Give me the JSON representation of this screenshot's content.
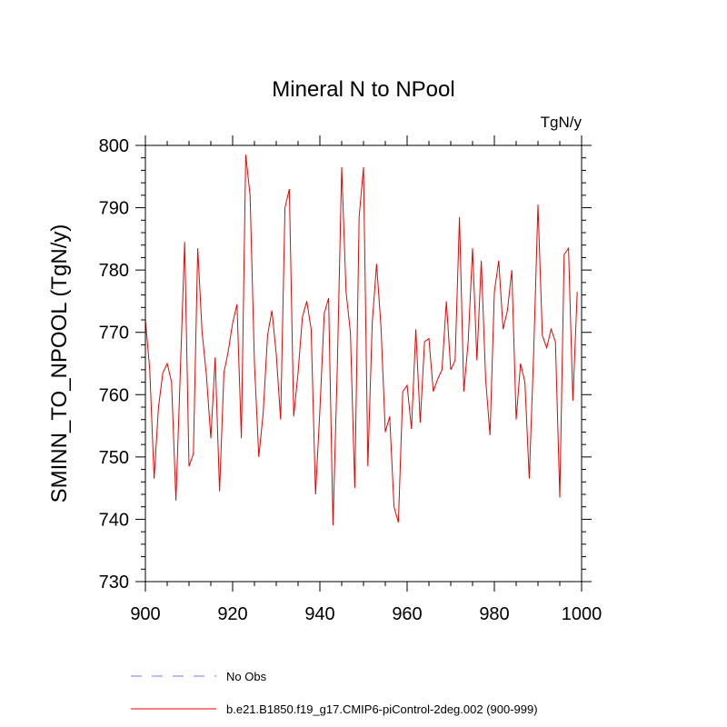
{
  "chart_data": {
    "type": "line",
    "title": "Mineral N to NPool",
    "units_label": "TgN/y",
    "xlabel": "",
    "ylabel": "SMINN_TO_NPOOL  (TgN/y)",
    "xlim": [
      900,
      1000
    ],
    "ylim": [
      730,
      800
    ],
    "x_ticks": [
      900,
      920,
      940,
      960,
      980,
      1000
    ],
    "x_tick_labels": [
      "900",
      "920",
      "940",
      "960",
      "980",
      "1000"
    ],
    "y_ticks": [
      730,
      740,
      750,
      760,
      770,
      780,
      790,
      800
    ],
    "y_tick_labels": [
      "730",
      "740",
      "750",
      "760",
      "770",
      "780",
      "790",
      "800"
    ],
    "grid": false,
    "legend": [
      {
        "label": "No Obs",
        "color": "#7070ff",
        "style": "dashed"
      },
      {
        "label": "b.e21.B1850.f19_g17.CMIP6-piControl-2deg.002 (900-999)",
        "color": "#ee0000",
        "style": "solid"
      }
    ],
    "series": [
      {
        "name": "b.e21.B1850.f19_g17.CMIP6-piControl-2deg.002 (900-999)",
        "color": "#ee0000",
        "x_start": 900,
        "x_step": 1,
        "values": [
          772.0,
          764.0,
          746.5,
          758.0,
          763.5,
          765.0,
          762.0,
          743.0,
          763.5,
          784.5,
          748.5,
          750.5,
          783.5,
          770.0,
          763.0,
          753.0,
          766.0,
          744.5,
          763.5,
          767.0,
          771.5,
          774.5,
          753.0,
          798.5,
          792.0,
          765.0,
          750.0,
          757.0,
          769.5,
          773.5,
          766.5,
          756.0,
          790.0,
          793.0,
          756.5,
          763.5,
          772.5,
          775.0,
          770.5,
          744.0,
          757.5,
          773.0,
          775.5,
          739.0,
          764.5,
          796.5,
          776.5,
          770.0,
          745.0,
          788.5,
          796.5,
          748.5,
          771.5,
          781.0,
          771.0,
          754.0,
          756.5,
          742.0,
          739.5,
          760.5,
          761.5,
          754.5,
          770.5,
          755.5,
          768.5,
          769.0,
          760.5,
          762.5,
          764.0,
          775.0,
          764.0,
          765.5,
          788.5,
          760.5,
          768.5,
          783.5,
          765.5,
          781.5,
          762.5,
          753.5,
          776.5,
          781.5,
          770.5,
          773.5,
          780.0,
          756.0,
          765.0,
          762.0,
          746.5,
          766.5,
          790.5,
          769.5,
          767.5,
          770.5,
          768.5,
          743.5,
          782.5,
          783.5,
          759.0,
          776.5
        ]
      }
    ]
  }
}
